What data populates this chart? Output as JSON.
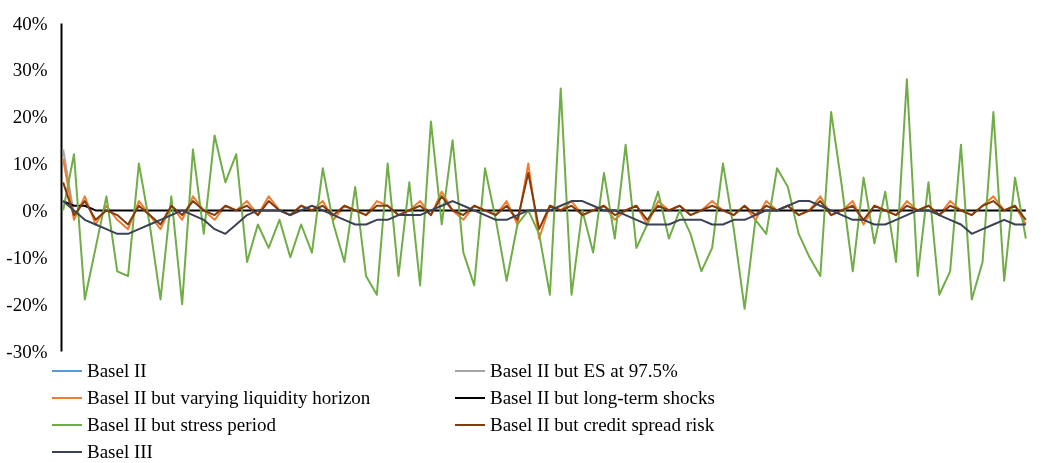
{
  "chart_data": {
    "type": "line",
    "categories": [
      null,
      null,
      null,
      null,
      null,
      null,
      null,
      null,
      null,
      null,
      null,
      null,
      null,
      null,
      null,
      null,
      null,
      null,
      null,
      null,
      null,
      null,
      null,
      null,
      null,
      null,
      null,
      null,
      null,
      null,
      null,
      null,
      null,
      null,
      null,
      null,
      null,
      null,
      null,
      null,
      null,
      null,
      null,
      null,
      null,
      null,
      null,
      null,
      null,
      null,
      null,
      null,
      null,
      null,
      null,
      null,
      null,
      null,
      null,
      null,
      null,
      null,
      null,
      null,
      null,
      null,
      null,
      null,
      null,
      null,
      null,
      null,
      null,
      null,
      null,
      null,
      null,
      null,
      null,
      null,
      null,
      null,
      null,
      null,
      null,
      null,
      null,
      null,
      null,
      null
    ],
    "ylim": [
      -30,
      40
    ],
    "yticks": [
      {
        "value": -30,
        "label": "-30%"
      },
      {
        "value": -20,
        "label": "-20%"
      },
      {
        "value": -10,
        "label": "-10%"
      },
      {
        "value": 0,
        "label": "0%"
      },
      {
        "value": 10,
        "label": "10%"
      },
      {
        "value": 20,
        "label": "20%"
      },
      {
        "value": 30,
        "label": "30%"
      },
      {
        "value": 40,
        "label": "40%"
      }
    ],
    "tick_labels": "y",
    "legend": "bottom",
    "grid": false,
    "series": [
      {
        "name": "Basel II",
        "color": "#5b9bd5",
        "values": [
          null,
          null,
          null,
          null,
          null,
          null,
          null,
          null,
          null,
          null,
          null,
          null,
          null,
          null,
          null,
          null,
          null,
          null,
          null,
          null,
          null,
          null,
          null,
          null,
          null,
          null,
          null,
          null,
          null,
          null,
          null,
          null,
          null,
          null,
          null,
          null,
          null,
          null,
          null,
          null,
          null,
          null,
          null,
          null,
          null,
          null,
          null,
          null,
          null,
          null,
          null,
          null,
          null,
          null,
          null,
          null,
          null,
          null,
          null,
          null,
          null,
          null,
          null,
          null,
          null,
          null,
          null,
          null,
          null,
          null,
          null,
          null,
          null,
          null,
          null,
          null,
          null,
          null,
          null,
          null,
          null,
          null,
          null,
          null,
          null,
          null,
          null,
          null,
          null,
          null
        ]
      },
      {
        "name": "Basel II but ES at 97.5%",
        "color": "#a5a5a5",
        "values": [
          13,
          -1,
          null,
          null,
          null,
          null,
          null,
          null,
          null,
          null,
          null,
          null,
          null,
          null,
          null,
          null,
          null,
          null,
          null,
          null,
          null,
          null,
          null,
          null,
          null,
          null,
          null,
          null,
          null,
          null,
          null,
          null,
          null,
          null,
          null,
          null,
          null,
          null,
          null,
          null,
          null,
          null,
          null,
          null,
          null,
          null,
          null,
          null,
          null,
          null,
          null,
          null,
          null,
          null,
          null,
          null,
          null,
          null,
          null,
          null,
          null,
          null,
          null,
          null,
          null,
          null,
          null,
          null,
          null,
          null,
          null,
          null,
          null,
          null,
          null,
          null,
          null,
          null,
          null,
          null,
          null,
          null,
          null,
          null,
          null,
          null,
          null,
          null,
          null,
          null
        ]
      },
      {
        "name": "Basel II but varying liquidity horizon",
        "color": "#ed7d31",
        "values": [
          11,
          -2,
          3,
          -3,
          1,
          -2,
          -4,
          2,
          -1,
          -4,
          1,
          -2,
          3,
          0,
          -2,
          1,
          0,
          2,
          -1,
          3,
          0,
          -1,
          1,
          0,
          2,
          -2,
          1,
          0,
          -1,
          2,
          1,
          -1,
          0,
          2,
          -1,
          4,
          0,
          -2,
          1,
          0,
          -1,
          2,
          -3,
          10,
          -6,
          1,
          0,
          2,
          -1,
          0,
          1,
          -2,
          0,
          1,
          -3,
          2,
          0,
          1,
          -1,
          0,
          2,
          0,
          -1,
          1,
          -2,
          2,
          0,
          1,
          -1,
          0,
          3,
          -1,
          0,
          2,
          -3,
          1,
          0,
          -1,
          2,
          0,
          1,
          -1,
          2,
          0,
          -1,
          1,
          3,
          0,
          1,
          -3
        ]
      },
      {
        "name": "Basel II but long-term shocks",
        "color": "#000000",
        "values": [
          2,
          1,
          1,
          0,
          0,
          0,
          0,
          0,
          0,
          0,
          0,
          0,
          0,
          0,
          0,
          0,
          0,
          0,
          0,
          0,
          0,
          0,
          0,
          0,
          0,
          0,
          0,
          0,
          0,
          0,
          0,
          0,
          0,
          0,
          0,
          0,
          0,
          0,
          0,
          0,
          0,
          0,
          0,
          0,
          0,
          0,
          0,
          0,
          0,
          0,
          0,
          0,
          0,
          0,
          0,
          0,
          0,
          0,
          0,
          0,
          0,
          0,
          0,
          0,
          0,
          0,
          0,
          0,
          0,
          0,
          0,
          0,
          0,
          0,
          0,
          0,
          0,
          0,
          0,
          0,
          0,
          0,
          0,
          0,
          0,
          0,
          0,
          0,
          0,
          0
        ]
      },
      {
        "name": "Basel II but stress period",
        "color": "#70ad47",
        "values": [
          0,
          12,
          -19,
          -8,
          3,
          -13,
          -14,
          10,
          -3,
          -19,
          3,
          -20,
          13,
          -5,
          16,
          6,
          12,
          -11,
          -3,
          -8,
          -2,
          -10,
          -3,
          -9,
          9,
          -3,
          -11,
          5,
          -14,
          -18,
          10,
          -14,
          6,
          -16,
          19,
          -3,
          15,
          -9,
          -16,
          9,
          -2,
          -15,
          -3,
          0,
          -5,
          -18,
          26,
          -18,
          0,
          -9,
          8,
          -6,
          14,
          -8,
          -3,
          4,
          -6,
          0,
          -5,
          -13,
          -8,
          10,
          -4,
          -21,
          -2,
          -5,
          9,
          5,
          -5,
          -10,
          -14,
          21,
          5,
          -13,
          7,
          -7,
          4,
          -11,
          28,
          -14,
          6,
          -18,
          -13,
          14,
          -19,
          -11,
          21,
          -15,
          7,
          -6
        ]
      },
      {
        "name": "Basel II but credit spread risk",
        "color": "#843c0c",
        "values": [
          6,
          -1,
          2,
          -2,
          0,
          -1,
          -3,
          1,
          -1,
          -3,
          1,
          -1,
          2,
          0,
          -1,
          1,
          0,
          1,
          -1,
          2,
          0,
          -1,
          1,
          0,
          1,
          -1,
          1,
          0,
          -1,
          1,
          1,
          -1,
          0,
          1,
          -1,
          3,
          0,
          -1,
          1,
          0,
          -1,
          1,
          -2,
          8,
          -4,
          1,
          0,
          1,
          -1,
          0,
          1,
          -1,
          0,
          1,
          -2,
          1,
          0,
          1,
          -1,
          0,
          1,
          0,
          -1,
          1,
          -1,
          1,
          0,
          1,
          -1,
          0,
          2,
          -1,
          0,
          1,
          -2,
          1,
          0,
          -1,
          1,
          0,
          1,
          -1,
          1,
          0,
          -1,
          1,
          2,
          0,
          1,
          -2
        ]
      },
      {
        "name": "Basel III",
        "color": "#3b4256",
        "values": [
          2,
          0,
          -2,
          -3,
          -4,
          -5,
          -5,
          -4,
          -3,
          -2,
          -1,
          0,
          -1,
          -2,
          -4,
          -5,
          -3,
          -1,
          0,
          0,
          0,
          -1,
          0,
          1,
          0,
          -1,
          -2,
          -3,
          -3,
          -2,
          -2,
          -1,
          -1,
          -1,
          0,
          1,
          2,
          1,
          0,
          -1,
          -2,
          -2,
          -1,
          0,
          0,
          0,
          1,
          2,
          2,
          1,
          0,
          0,
          -1,
          -2,
          -3,
          -3,
          -3,
          -2,
          -2,
          -2,
          -3,
          -3,
          -2,
          -2,
          -1,
          0,
          0,
          1,
          2,
          2,
          1,
          0,
          -1,
          -2,
          -2,
          -3,
          -3,
          -2,
          -1,
          0,
          0,
          -1,
          -2,
          -3,
          -5,
          -4,
          -3,
          -2,
          -3,
          -3
        ]
      }
    ]
  }
}
